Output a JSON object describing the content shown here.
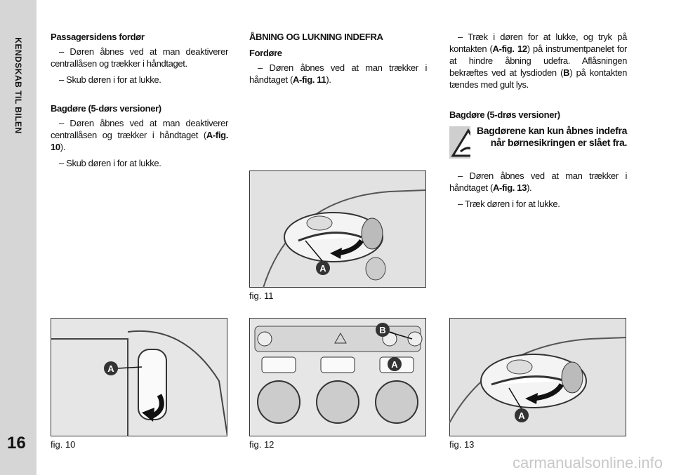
{
  "sidebar": {
    "section": "KENDSKAB TIL BILEN",
    "page_number": "16"
  },
  "column1": {
    "heading1": "Passagersidens fordør",
    "paragraphs1": [
      [
        "– Døren åbnes ved at man deaktiverer centrallåsen og trækker i håndtaget."
      ],
      [
        "– Skub døren i for at lukke."
      ]
    ],
    "heading2": "Bagdøre (5-dørs versioner)",
    "paragraphs2": [
      [
        "– Døren åbnes ved at man deaktiverer centrallåsen og trækker i håndtaget (",
        "A-fig. 10",
        ")."
      ],
      [
        "– Skub døren i for at lukke."
      ]
    ]
  },
  "column2": {
    "title": "ÅBNING OG LUKNING INDEFRA",
    "heading": "Fordøre",
    "paragraphs": [
      [
        "– Døren åbnes ved at man trækker i håndtaget (",
        "A-fig. 11",
        ")."
      ]
    ]
  },
  "column3": {
    "paragraphs1": [
      [
        "– Træk i døren for at lukke, og tryk på kontakten (",
        "A-fig. 12",
        ") på instrumentpanelet for at hindre åbning udefra. Aflåsningen bekræftes ved at lysdioden (",
        "B",
        ") på kontakten tændes med gult lys."
      ]
    ],
    "heading": "Bagdøre (5-drøs versioner)",
    "warning": "Bagdørene kan kun åbnes indefra når børnesikringen er slået fra.",
    "paragraphs2": [
      [
        "– Døren åbnes ved at man trækker i håndtaget (",
        "A-fig. 13",
        ")."
      ],
      [
        "– Træk døren i for at lukke."
      ]
    ]
  },
  "figures": {
    "fig10": {
      "caption": "fig. 10",
      "callouts": [
        "A"
      ]
    },
    "fig11": {
      "caption": "fig. 11",
      "callouts": [
        "A"
      ]
    },
    "fig12": {
      "caption": "fig. 12",
      "callouts": [
        "B",
        "A"
      ]
    },
    "fig13": {
      "caption": "fig. 13",
      "callouts": [
        "A"
      ]
    }
  },
  "watermark": "carmanualsonline.info"
}
